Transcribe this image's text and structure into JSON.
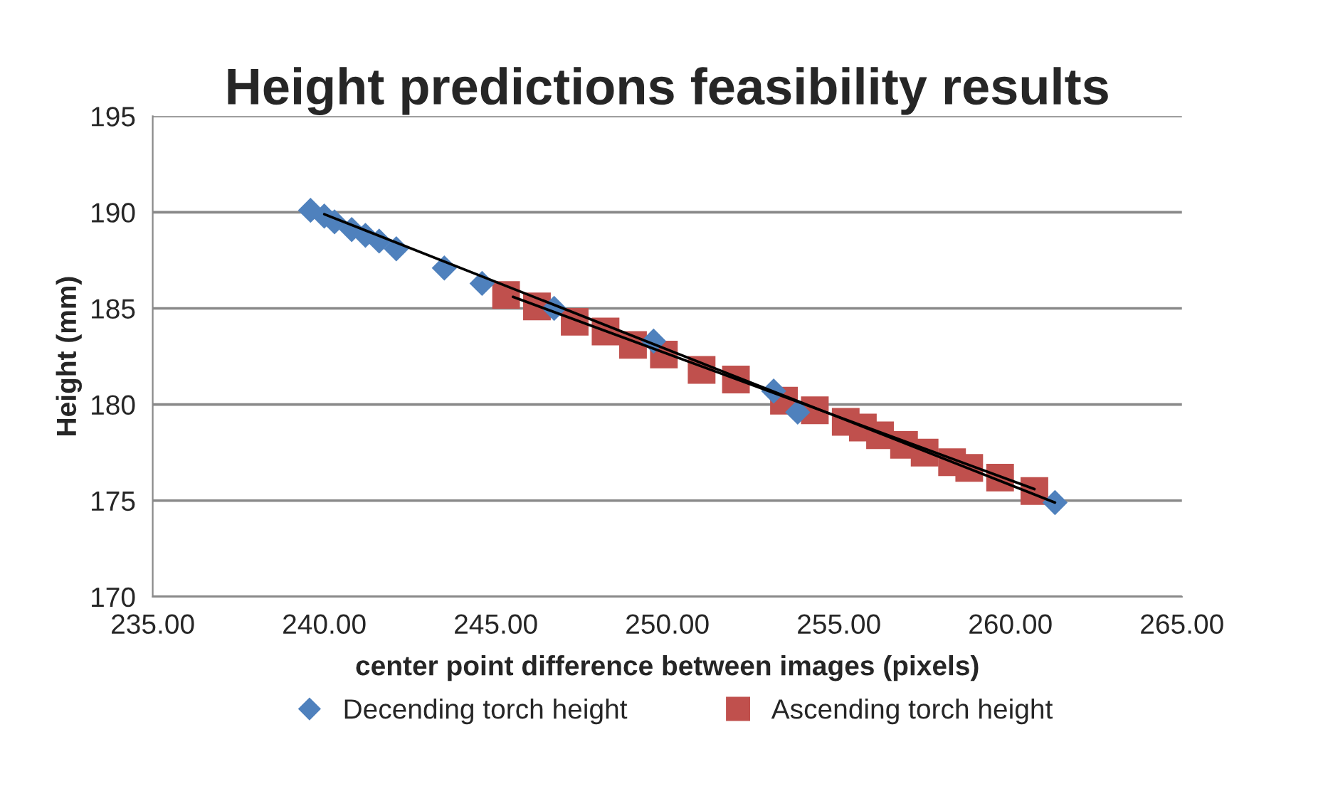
{
  "chart_data": {
    "type": "scatter",
    "title": "Height predictions feasibility results",
    "xlabel": "center point difference between images (pixels)",
    "ylabel": "Height (mm)",
    "xlim": [
      235,
      265
    ],
    "xticks": [
      {
        "value": 235,
        "label": "235.00"
      },
      {
        "value": 240,
        "label": "240.00"
      },
      {
        "value": 245,
        "label": "245.00"
      },
      {
        "value": 250,
        "label": "250.00"
      },
      {
        "value": 255,
        "label": "255.00"
      },
      {
        "value": 260,
        "label": "260.00"
      },
      {
        "value": 265,
        "label": "265.00"
      }
    ],
    "ylim": [
      170,
      195
    ],
    "yticks": [
      170,
      175,
      180,
      185,
      190,
      195
    ],
    "grid": "y",
    "legend": "bottom",
    "series": [
      {
        "name": "Decending torch height",
        "color": "#4f81bd",
        "marker": "diamond",
        "x": [
          239.6,
          240.0,
          240.3,
          240.8,
          241.2,
          241.6,
          242.1,
          243.5,
          244.6,
          246.7,
          249.6,
          253.1,
          253.8,
          261.3
        ],
        "values": [
          190.1,
          189.8,
          189.5,
          189.1,
          188.8,
          188.5,
          188.1,
          187.1,
          186.3,
          185.0,
          183.3,
          180.7,
          179.6,
          174.9
        ]
      },
      {
        "name": "Ascending torch height",
        "color": "#c0504d",
        "marker": "square",
        "x": [
          245.3,
          246.2,
          247.3,
          248.2,
          249.0,
          249.9,
          251.0,
          252.0,
          253.4,
          254.3,
          255.2,
          255.7,
          256.2,
          256.9,
          257.5,
          258.3,
          258.8,
          259.7,
          260.7
        ],
        "values": [
          185.7,
          185.1,
          184.3,
          183.8,
          183.1,
          182.6,
          181.8,
          181.3,
          180.2,
          179.7,
          179.1,
          178.8,
          178.4,
          177.9,
          177.5,
          177.0,
          176.7,
          176.2,
          175.5
        ]
      },
      {
        "type": "line",
        "color": "#000000",
        "x": [
          240.0,
          261.3
        ],
        "values": [
          189.9,
          174.9
        ]
      },
      {
        "type": "line",
        "color": "#000000",
        "x": [
          245.5,
          260.7
        ],
        "values": [
          185.6,
          175.6
        ]
      }
    ]
  }
}
